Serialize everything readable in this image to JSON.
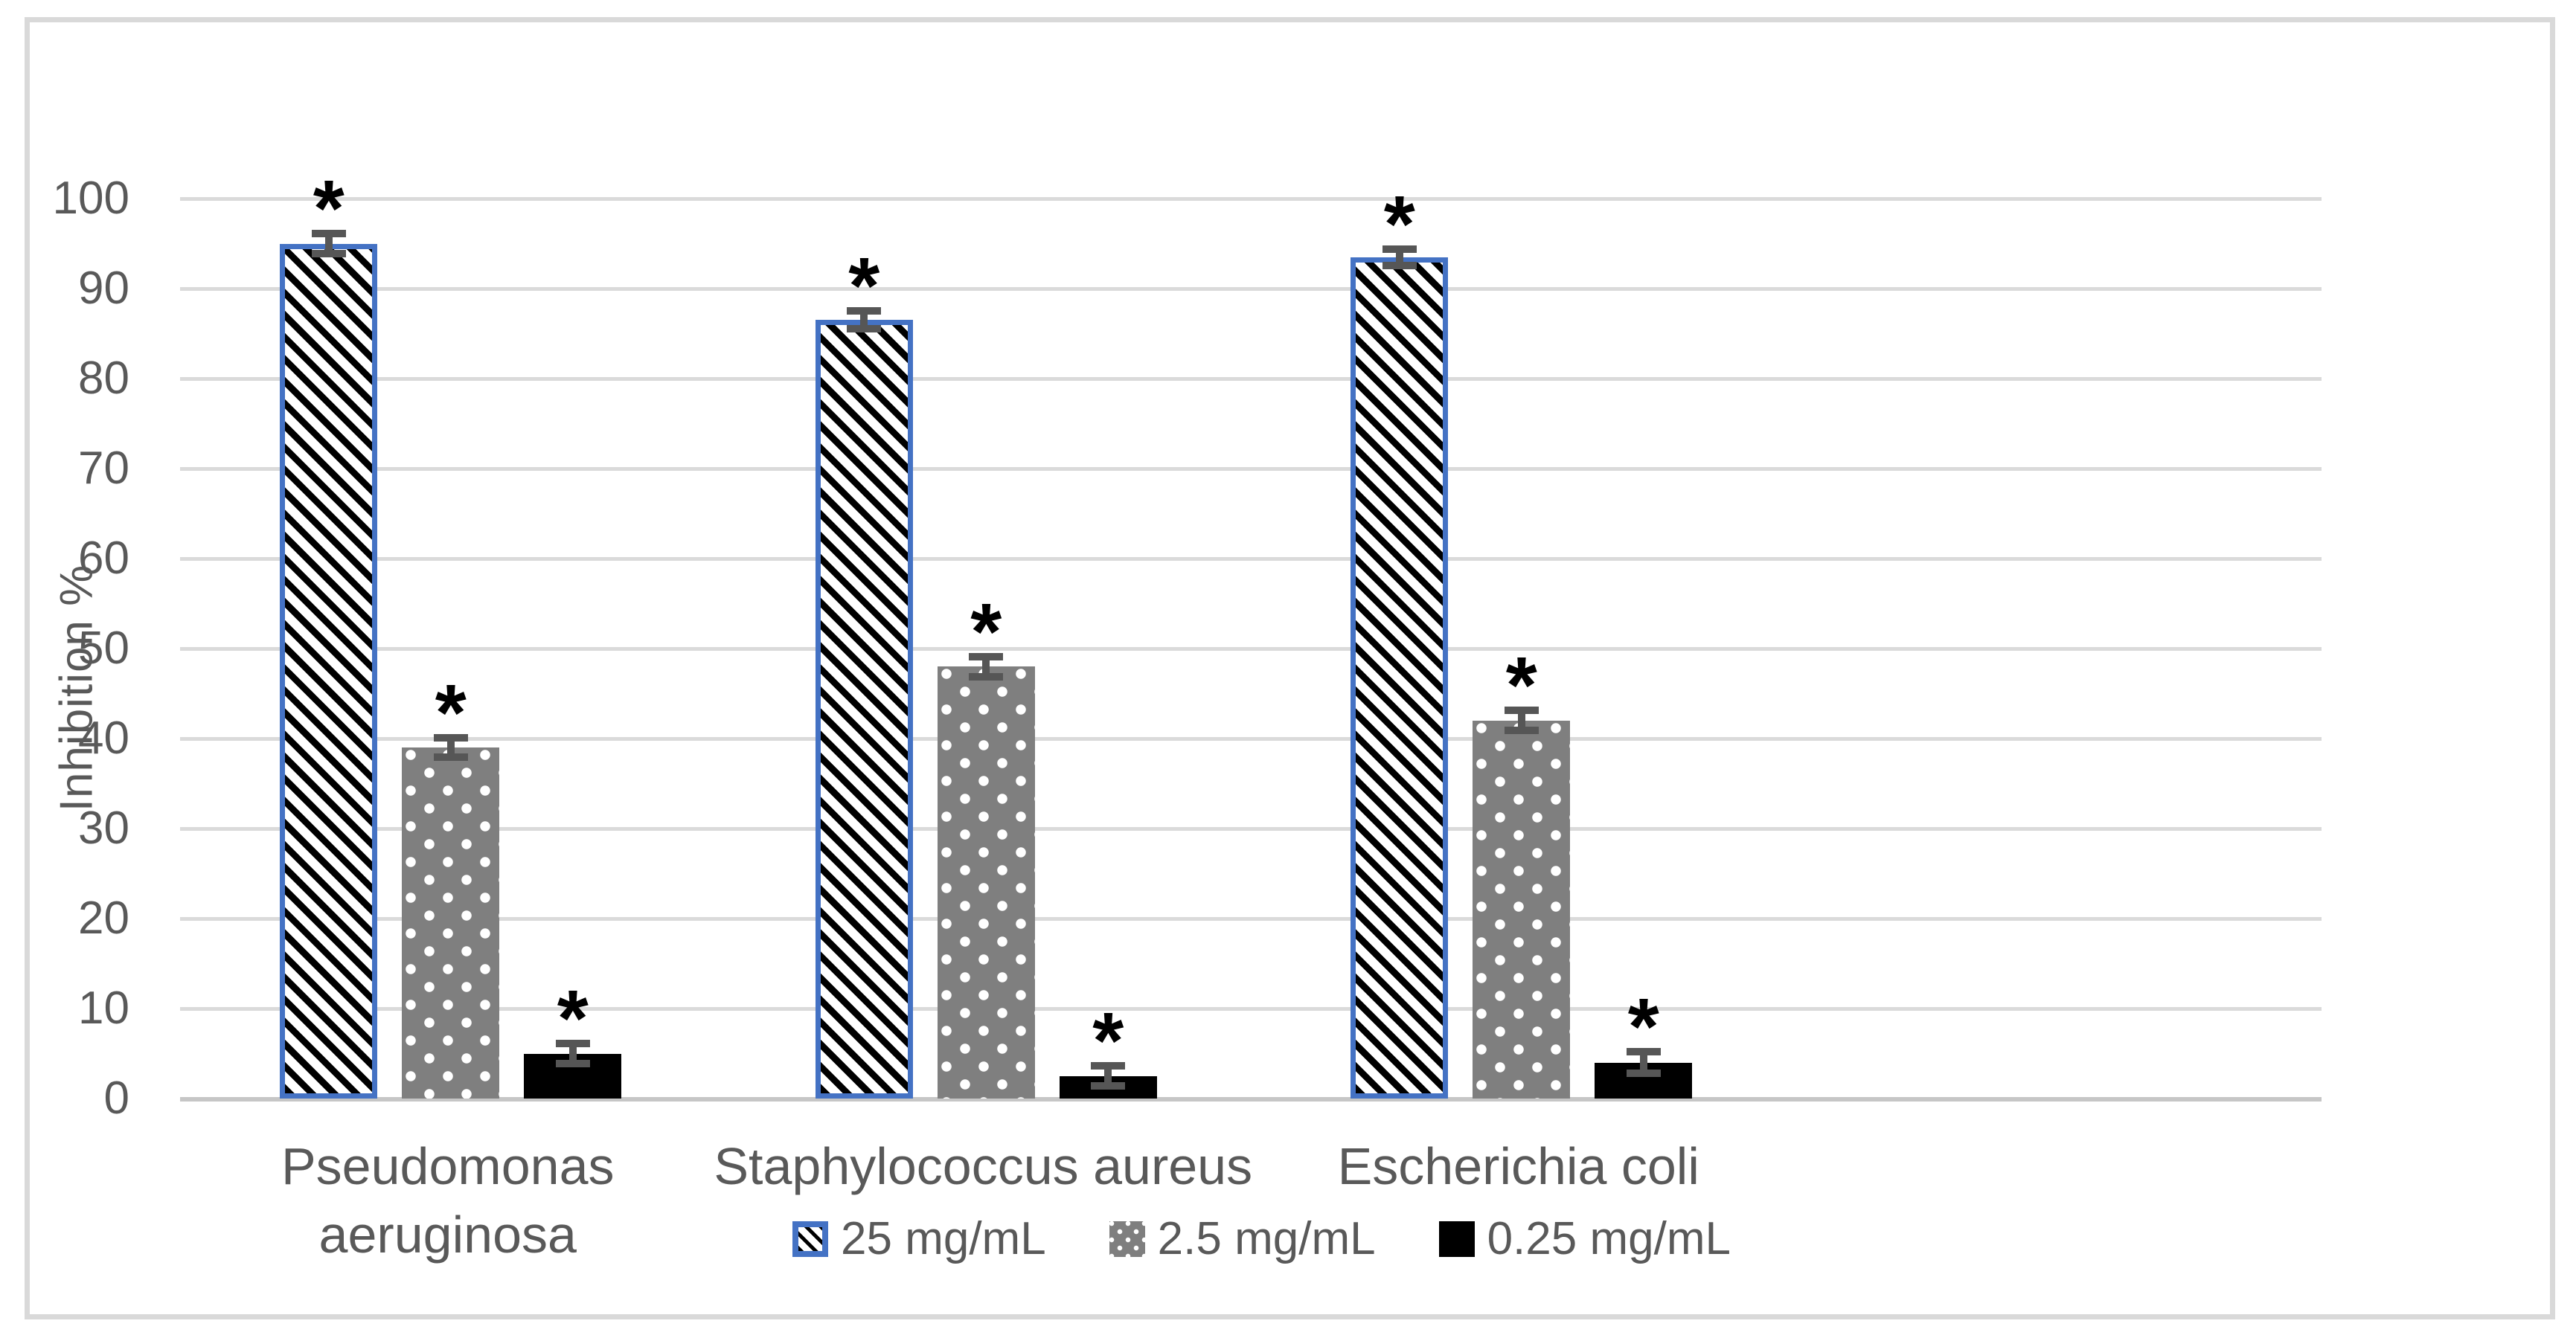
{
  "figure": {
    "background": "#FFFFFF",
    "border_color": "#D9D9D9"
  },
  "chart_data": {
    "type": "bar",
    "title": "",
    "xlabel": "",
    "ylabel": "Inhibition %",
    "ylim": [
      0,
      100
    ],
    "ytick_step": 10,
    "ytick_labels": [
      "0",
      "10",
      "20",
      "30",
      "40",
      "50",
      "60",
      "70",
      "80",
      "90",
      "100"
    ],
    "grid": true,
    "legend_position": "bottom",
    "categories": [
      "Pseudomonas aeruginosa",
      "Staphylococcus aureus",
      "Escherichia coli"
    ],
    "category_label_lines": [
      [
        "Pseudomonas",
        "aeruginosa"
      ],
      [
        "Staphylococcus aureus"
      ],
      [
        "Escherichia coli"
      ]
    ],
    "category_slots": 4,
    "series": [
      {
        "name": "25 mg/mL",
        "values": [
          95,
          86.5,
          93.5
        ],
        "errors": [
          1.1,
          1.0,
          0.9
        ],
        "significance": [
          "*",
          "*",
          "*"
        ],
        "pattern": "diagonal-hatch",
        "fill": "#FFFFFF",
        "hatch_color": "#000000",
        "border_color": "#4472C4"
      },
      {
        "name": "2.5 mg/mL",
        "values": [
          39,
          48,
          42
        ],
        "errors": [
          1.1,
          1.1,
          1.1
        ],
        "significance": [
          "*",
          "*",
          "*"
        ],
        "pattern": "white-dots",
        "fill": "#7F7F7F",
        "dot_color": "#FFFFFF"
      },
      {
        "name": "0.25 mg/mL",
        "values": [
          5,
          2.5,
          4
        ],
        "errors": [
          1.1,
          1.1,
          1.2
        ],
        "significance": [
          "*",
          "*",
          "*"
        ],
        "pattern": "solid",
        "fill": "#000000"
      }
    ],
    "error_bar_color": "#565656",
    "gridline_color": "#DADADA",
    "axis_line_color": "#C6C6C6",
    "text_color": "#595959"
  }
}
